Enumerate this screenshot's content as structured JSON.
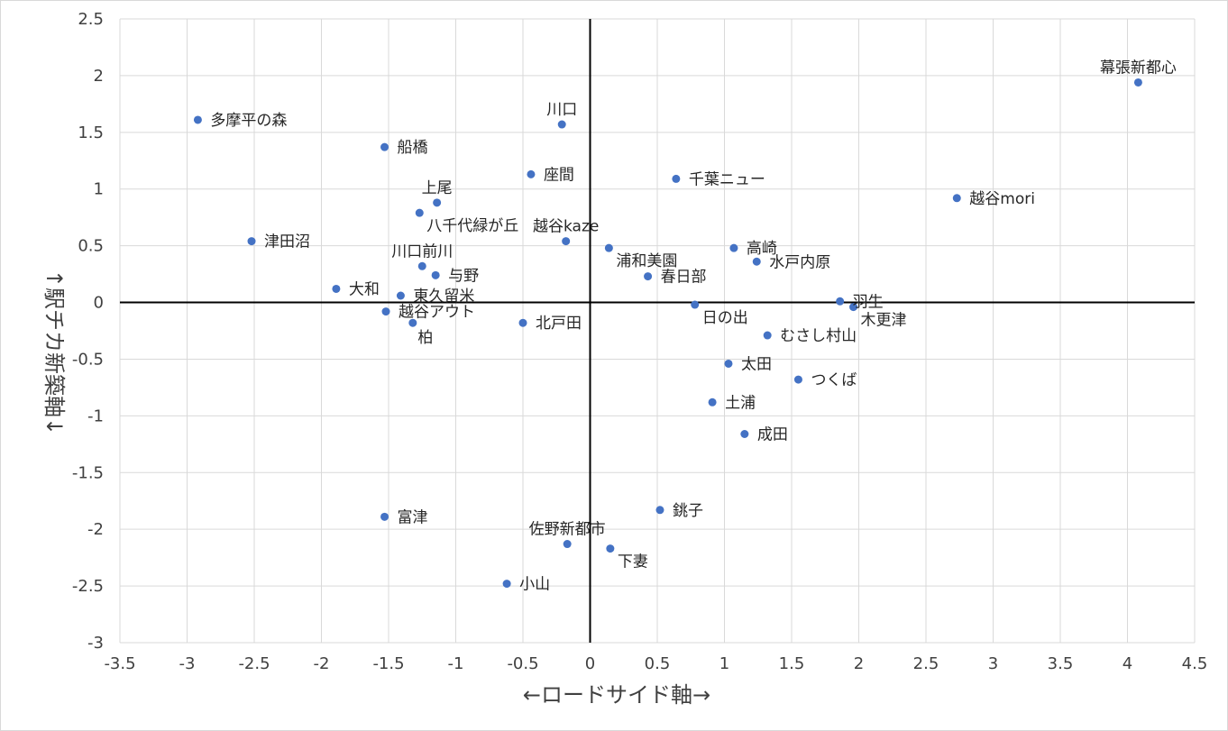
{
  "chart_data": {
    "type": "scatter",
    "xlabel": "←ロードサイド軸→",
    "ylabel": "↑駅チカ新築軸↓",
    "xlim": [
      -3.5,
      4.5
    ],
    "ylim": [
      -3,
      2.5
    ],
    "xticks": [
      -3.5,
      -3,
      -2.5,
      -2,
      -1.5,
      -1,
      -0.5,
      0,
      0.5,
      1,
      1.5,
      2,
      2.5,
      3,
      3.5,
      4,
      4.5
    ],
    "yticks": [
      2.5,
      2,
      1.5,
      1,
      0.5,
      0,
      -0.5,
      -1,
      -1.5,
      -2,
      -2.5,
      -3
    ],
    "xtick_labels": [
      "-3.5",
      "-3",
      "-2.5",
      "-2",
      "-1.5",
      "-1",
      "-0.5",
      "0",
      "0.5",
      "1",
      "1.5",
      "2",
      "2.5",
      "3",
      "3.5",
      "4",
      "4.5"
    ],
    "ytick_labels": [
      "2.5",
      "2",
      "1.5",
      "1",
      "0.5",
      "0",
      "-0.5",
      "-1",
      "-1.5",
      "-2",
      "-2.5",
      "-3"
    ],
    "grid": true,
    "marker_color": "#4472c4",
    "points": [
      {
        "label": "幕張新都心",
        "x": 4.08,
        "y": 1.94,
        "pos": "above"
      },
      {
        "label": "越谷mori",
        "x": 2.73,
        "y": 0.92,
        "pos": "right"
      },
      {
        "label": "多摩平の森",
        "x": -2.92,
        "y": 1.61,
        "pos": "right"
      },
      {
        "label": "船橋",
        "x": -1.53,
        "y": 1.37,
        "pos": "right"
      },
      {
        "label": "川口",
        "x": -0.21,
        "y": 1.57,
        "pos": "above"
      },
      {
        "label": "座間",
        "x": -0.44,
        "y": 1.13,
        "pos": "right"
      },
      {
        "label": "千葉ニュー",
        "x": 0.64,
        "y": 1.09,
        "pos": "right"
      },
      {
        "label": "上尾",
        "x": -1.14,
        "y": 0.88,
        "pos": "above"
      },
      {
        "label": "八千代緑が丘",
        "x": -1.27,
        "y": 0.79,
        "pos": "belowright"
      },
      {
        "label": "津田沼",
        "x": -2.52,
        "y": 0.54,
        "pos": "right"
      },
      {
        "label": "越谷kaze",
        "x": -0.18,
        "y": 0.54,
        "pos": "above"
      },
      {
        "label": "浦和美園",
        "x": 0.14,
        "y": 0.48,
        "pos": "belowright"
      },
      {
        "label": "高崎",
        "x": 1.07,
        "y": 0.48,
        "pos": "right"
      },
      {
        "label": "水戸内原",
        "x": 1.24,
        "y": 0.36,
        "pos": "right"
      },
      {
        "label": "川口前川",
        "x": -1.25,
        "y": 0.32,
        "pos": "above"
      },
      {
        "label": "与野",
        "x": -1.15,
        "y": 0.24,
        "pos": "right"
      },
      {
        "label": "春日部",
        "x": 0.43,
        "y": 0.23,
        "pos": "right"
      },
      {
        "label": "大和",
        "x": -1.89,
        "y": 0.12,
        "pos": "right"
      },
      {
        "label": "東久留米",
        "x": -1.41,
        "y": 0.06,
        "pos": "right"
      },
      {
        "label": "羽生",
        "x": 1.86,
        "y": 0.01,
        "pos": "right"
      },
      {
        "label": "日の出",
        "x": 0.78,
        "y": -0.02,
        "pos": "belowright"
      },
      {
        "label": "木更津",
        "x": 1.96,
        "y": -0.04,
        "pos": "belowright"
      },
      {
        "label": "越谷アウト",
        "x": -1.52,
        "y": -0.08,
        "pos": "right"
      },
      {
        "label": "柏",
        "x": -1.32,
        "y": -0.18,
        "pos": "below"
      },
      {
        "label": "北戸田",
        "x": -0.5,
        "y": -0.18,
        "pos": "right"
      },
      {
        "label": "むさし村山",
        "x": 1.32,
        "y": -0.29,
        "pos": "right"
      },
      {
        "label": "太田",
        "x": 1.03,
        "y": -0.54,
        "pos": "right"
      },
      {
        "label": "つくば",
        "x": 1.55,
        "y": -0.68,
        "pos": "right"
      },
      {
        "label": "土浦",
        "x": 0.91,
        "y": -0.88,
        "pos": "right"
      },
      {
        "label": "成田",
        "x": 1.15,
        "y": -1.16,
        "pos": "right"
      },
      {
        "label": "富津",
        "x": -1.53,
        "y": -1.89,
        "pos": "right"
      },
      {
        "label": "銚子",
        "x": 0.52,
        "y": -1.83,
        "pos": "right"
      },
      {
        "label": "佐野新都市",
        "x": -0.17,
        "y": -2.13,
        "pos": "above"
      },
      {
        "label": "下妻",
        "x": 0.15,
        "y": -2.17,
        "pos": "belowright"
      },
      {
        "label": "小山",
        "x": -0.62,
        "y": -2.48,
        "pos": "right"
      }
    ]
  }
}
